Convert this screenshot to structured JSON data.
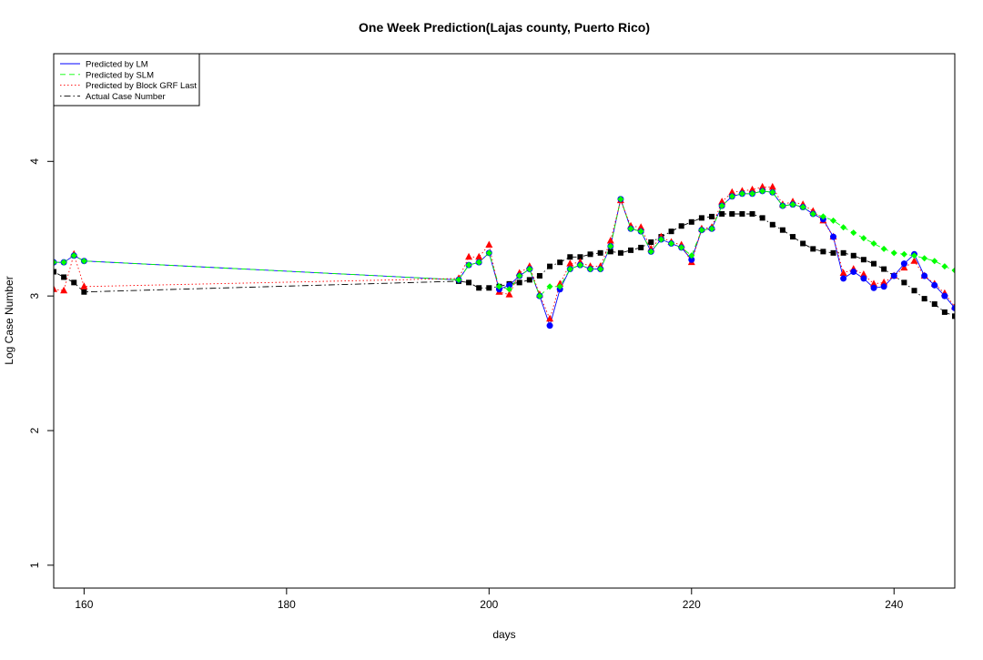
{
  "chart_data": {
    "type": "line",
    "title": "One Week Prediction(Lajas county, Puerto Rico)",
    "xlabel": "days",
    "ylabel": "Log Case Number",
    "xlim": [
      157,
      246
    ],
    "ylim": [
      0.83,
      4.8
    ],
    "xticks": [
      160,
      180,
      200,
      220,
      240
    ],
    "yticks": [
      1,
      2,
      3,
      4
    ],
    "grid": false,
    "legend_position": "top-left",
    "x": [
      157,
      158,
      159,
      160,
      197,
      198,
      199,
      200,
      201,
      202,
      203,
      204,
      205,
      206,
      207,
      208,
      209,
      210,
      211,
      212,
      213,
      214,
      215,
      216,
      217,
      218,
      219,
      220,
      221,
      222,
      223,
      224,
      225,
      226,
      227,
      228,
      229,
      230,
      231,
      232,
      233,
      234,
      235,
      236,
      237,
      238,
      239,
      240,
      241,
      242,
      243,
      244,
      245,
      246
    ],
    "series": [
      {
        "name": "Predicted by LM",
        "color": "#0000ff",
        "line_style": "solid",
        "marker": "circle",
        "values": [
          3.25,
          3.25,
          3.3,
          3.26,
          3.12,
          3.23,
          3.25,
          3.32,
          3.05,
          3.08,
          3.15,
          3.2,
          3.0,
          2.78,
          3.05,
          3.2,
          3.23,
          3.2,
          3.2,
          3.37,
          3.72,
          3.5,
          3.48,
          3.33,
          3.42,
          3.39,
          3.36,
          3.27,
          3.49,
          3.5,
          3.67,
          3.74,
          3.76,
          3.76,
          3.78,
          3.77,
          3.67,
          3.68,
          3.66,
          3.61,
          3.57,
          3.44,
          3.13,
          3.18,
          3.13,
          3.06,
          3.07,
          3.15,
          3.24,
          3.31,
          3.15,
          3.08,
          3.0,
          2.91
        ]
      },
      {
        "name": "Predicted by SLM",
        "color": "#00ff00",
        "line_style": "dashed",
        "marker": "diamond",
        "values": [
          3.25,
          3.25,
          3.3,
          3.26,
          3.12,
          3.23,
          3.25,
          3.32,
          3.07,
          3.05,
          3.15,
          3.2,
          3.0,
          3.07,
          3.07,
          3.2,
          3.23,
          3.2,
          3.2,
          3.37,
          3.72,
          3.5,
          3.48,
          3.33,
          3.42,
          3.39,
          3.36,
          3.3,
          3.49,
          3.5,
          3.67,
          3.74,
          3.76,
          3.76,
          3.78,
          3.77,
          3.67,
          3.68,
          3.66,
          3.61,
          3.59,
          3.56,
          3.51,
          3.47,
          3.43,
          3.39,
          3.35,
          3.32,
          3.31,
          3.3,
          3.28,
          3.26,
          3.22,
          3.19
        ]
      },
      {
        "name": "Predicted by Block GRF Last",
        "color": "#ff0000",
        "line_style": "dotted",
        "marker": "triangle",
        "values": [
          3.05,
          3.04,
          3.31,
          3.07,
          3.13,
          3.29,
          3.29,
          3.38,
          3.03,
          3.01,
          3.17,
          3.22,
          3.01,
          2.83,
          3.09,
          3.24,
          3.25,
          3.22,
          3.22,
          3.41,
          3.71,
          3.52,
          3.51,
          3.35,
          3.44,
          3.4,
          3.38,
          3.25,
          3.5,
          3.51,
          3.7,
          3.77,
          3.78,
          3.79,
          3.81,
          3.81,
          3.68,
          3.7,
          3.68,
          3.63,
          3.56,
          3.44,
          3.17,
          3.2,
          3.16,
          3.09,
          3.1,
          3.15,
          3.21,
          3.26,
          3.15,
          3.09,
          3.02,
          2.92
        ]
      },
      {
        "name": "Actual Case Number",
        "color": "#000000",
        "line_style": "dotdash",
        "marker": "square",
        "values": [
          3.18,
          3.14,
          3.1,
          3.03,
          3.11,
          3.1,
          3.06,
          3.06,
          3.07,
          3.09,
          3.1,
          3.12,
          3.15,
          3.22,
          3.25,
          3.29,
          3.29,
          3.31,
          3.32,
          3.33,
          3.32,
          3.34,
          3.36,
          3.4,
          3.44,
          3.48,
          3.52,
          3.55,
          3.58,
          3.59,
          3.61,
          3.61,
          3.61,
          3.61,
          3.58,
          3.53,
          3.49,
          3.44,
          3.39,
          3.35,
          3.33,
          3.32,
          3.32,
          3.3,
          3.27,
          3.24,
          3.2,
          3.15,
          3.1,
          3.04,
          2.98,
          2.94,
          2.88,
          2.85
        ]
      }
    ]
  }
}
